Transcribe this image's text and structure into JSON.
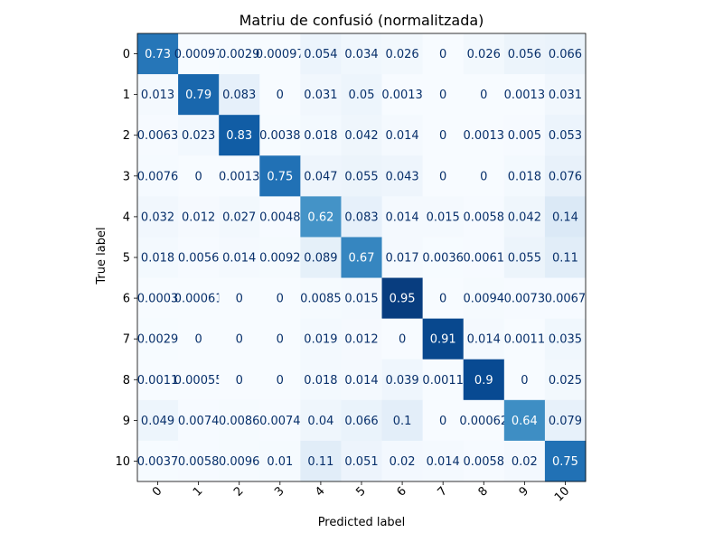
{
  "chart_data": {
    "type": "heatmap",
    "title": "Matriu de confusió (normalitzada)",
    "xlabel": "Predicted label",
    "ylabel": "True label",
    "x_tick_labels": [
      "0",
      "1",
      "2",
      "3",
      "4",
      "5",
      "6",
      "7",
      "8",
      "9",
      "10"
    ],
    "y_tick_labels": [
      "0",
      "1",
      "2",
      "3",
      "4",
      "5",
      "6",
      "7",
      "8",
      "9",
      "10"
    ],
    "colormap": "Blues",
    "value_range": [
      0,
      1
    ],
    "values": [
      [
        "0.73",
        "0.00097",
        "0.0029",
        "0.00097",
        "0.054",
        "0.034",
        "0.026",
        "0",
        "0.026",
        "0.056",
        "0.066"
      ],
      [
        "0.013",
        "0.79",
        "0.083",
        "0",
        "0.031",
        "0.05",
        "0.0013",
        "0",
        "0",
        "0.0013",
        "0.031"
      ],
      [
        "0.0063",
        "0.023",
        "0.83",
        "0.0038",
        "0.018",
        "0.042",
        "0.014",
        "0",
        "0.0013",
        "0.005",
        "0.053"
      ],
      [
        "0.0076",
        "0",
        "0.0013",
        "0.75",
        "0.047",
        "0.055",
        "0.043",
        "0",
        "0",
        "0.018",
        "0.076"
      ],
      [
        "0.032",
        "0.012",
        "0.027",
        "0.0048",
        "0.62",
        "0.083",
        "0.014",
        "0.015",
        "0.0058",
        "0.042",
        "0.14"
      ],
      [
        "0.018",
        "0.0056",
        "0.014",
        "0.0092",
        "0.089",
        "0.67",
        "0.017",
        "0.0036",
        "0.0061",
        "0.055",
        "0.11"
      ],
      [
        "0.0003",
        "0.00061",
        "0",
        "0",
        "0.0085",
        "0.015",
        "0.95",
        "0",
        "0.0094",
        "0.0073",
        "0.0067"
      ],
      [
        "0.0029",
        "0",
        "0",
        "0",
        "0.019",
        "0.012",
        "0",
        "0.91",
        "0.014",
        "0.0011",
        "0.035"
      ],
      [
        "0.0011",
        "0.00055",
        "0",
        "0",
        "0.018",
        "0.014",
        "0.039",
        "0.0011",
        "0.9",
        "0",
        "0.025"
      ],
      [
        "0.049",
        "0.0074",
        "0.0086",
        "0.0074",
        "0.04",
        "0.066",
        "0.1",
        "0",
        "0.00062",
        "0.64",
        "0.079"
      ],
      [
        "0.0037",
        "0.0058",
        "0.0096",
        "0.01",
        "0.11",
        "0.051",
        "0.02",
        "0.014",
        "0.0058",
        "0.02",
        "0.75"
      ]
    ]
  }
}
